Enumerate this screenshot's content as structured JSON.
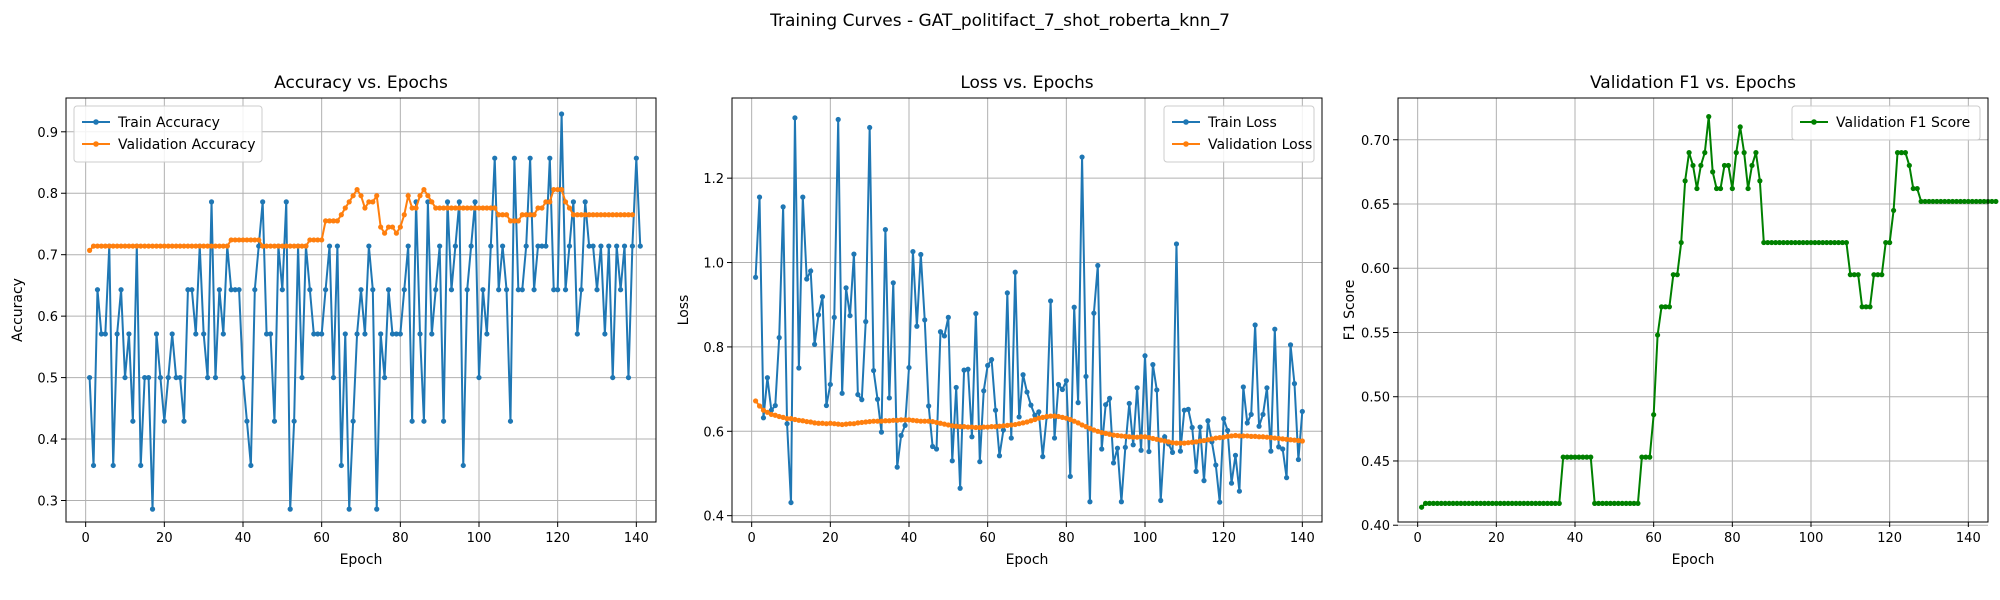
{
  "figure": {
    "suptitle": "Training Curves - GAT_politifact_7_shot_roberta_knn_7"
  },
  "colors": {
    "train": "#1f77b4",
    "validation": "#ff7f0e",
    "f1": "#008000"
  },
  "chart_data": [
    {
      "type": "line",
      "title": "Accuracy vs. Epochs",
      "xlabel": "Epoch",
      "ylabel": "Accuracy",
      "xlim": [
        -5,
        145
      ],
      "ylim": [
        0.265,
        0.955
      ],
      "xticks": [
        0,
        20,
        40,
        60,
        80,
        100,
        120,
        140
      ],
      "yticks": [
        0.3,
        0.4,
        0.5,
        0.6,
        0.7,
        0.8,
        0.9
      ],
      "ytick_labels": [
        "0.3",
        "0.4",
        "0.5",
        "0.6",
        "0.7",
        "0.8",
        "0.9"
      ],
      "grid": true,
      "legend_position": "top-left",
      "series": [
        {
          "name": "Train Accuracy",
          "color": "#1f77b4",
          "values": [
            0.5,
            0.357,
            0.643,
            0.571,
            0.571,
            0.714,
            0.357,
            0.571,
            0.643,
            0.5,
            0.571,
            0.429,
            0.714,
            0.357,
            0.5,
            0.5,
            0.286,
            0.571,
            0.5,
            0.429,
            0.5,
            0.571,
            0.5,
            0.5,
            0.429,
            0.643,
            0.643,
            0.571,
            0.714,
            0.571,
            0.5,
            0.786,
            0.5,
            0.643,
            0.571,
            0.714,
            0.643,
            0.643,
            0.643,
            0.5,
            0.429,
            0.357,
            0.643,
            0.714,
            0.786,
            0.571,
            0.571,
            0.429,
            0.714,
            0.643,
            0.786,
            0.286,
            0.429,
            0.714,
            0.5,
            0.714,
            0.643,
            0.571,
            0.571,
            0.571,
            0.643,
            0.714,
            0.5,
            0.714,
            0.357,
            0.571,
            0.286,
            0.429,
            0.571,
            0.643,
            0.571,
            0.714,
            0.643,
            0.286,
            0.571,
            0.5,
            0.643,
            0.571,
            0.571,
            0.571,
            0.643,
            0.714,
            0.429,
            0.786,
            0.571,
            0.429,
            0.786,
            0.571,
            0.643,
            0.714,
            0.429,
            0.786,
            0.643,
            0.714,
            0.786,
            0.357,
            0.643,
            0.714,
            0.786,
            0.5,
            0.643,
            0.571,
            0.714,
            0.857,
            0.643,
            0.714,
            0.643,
            0.429,
            0.857,
            0.643,
            0.643,
            0.714,
            0.857,
            0.643,
            0.714,
            0.714,
            0.714,
            0.857,
            0.643,
            0.643,
            0.929,
            0.643,
            0.714,
            0.786,
            0.571,
            0.643,
            0.786,
            0.714,
            0.714,
            0.643,
            0.714,
            0.571,
            0.714,
            0.5,
            0.714,
            0.643,
            0.714,
            0.5,
            0.714,
            0.857,
            0.714
          ]
        },
        {
          "name": "Validation Accuracy",
          "color": "#ff7f0e",
          "values": [
            0.707,
            0.714,
            0.714,
            0.714,
            0.714,
            0.714,
            0.714,
            0.714,
            0.714,
            0.714,
            0.714,
            0.714,
            0.714,
            0.714,
            0.714,
            0.714,
            0.714,
            0.714,
            0.714,
            0.714,
            0.714,
            0.714,
            0.714,
            0.714,
            0.714,
            0.714,
            0.714,
            0.714,
            0.714,
            0.714,
            0.714,
            0.714,
            0.714,
            0.714,
            0.714,
            0.714,
            0.724,
            0.724,
            0.724,
            0.724,
            0.724,
            0.724,
            0.724,
            0.724,
            0.714,
            0.714,
            0.714,
            0.714,
            0.714,
            0.714,
            0.714,
            0.714,
            0.714,
            0.714,
            0.714,
            0.714,
            0.724,
            0.724,
            0.724,
            0.724,
            0.755,
            0.755,
            0.755,
            0.755,
            0.765,
            0.776,
            0.786,
            0.796,
            0.806,
            0.796,
            0.776,
            0.786,
            0.786,
            0.796,
            0.745,
            0.735,
            0.745,
            0.745,
            0.735,
            0.745,
            0.765,
            0.796,
            0.776,
            0.776,
            0.796,
            0.806,
            0.796,
            0.786,
            0.776,
            0.776,
            0.776,
            0.776,
            0.776,
            0.776,
            0.776,
            0.776,
            0.776,
            0.776,
            0.776,
            0.776,
            0.776,
            0.776,
            0.776,
            0.776,
            0.765,
            0.765,
            0.765,
            0.755,
            0.755,
            0.755,
            0.765,
            0.765,
            0.765,
            0.765,
            0.776,
            0.776,
            0.786,
            0.786,
            0.806,
            0.806,
            0.806,
            0.786,
            0.776,
            0.765,
            0.765,
            0.765,
            0.765,
            0.765,
            0.765,
            0.765,
            0.765,
            0.765,
            0.765,
            0.765,
            0.765,
            0.765,
            0.765,
            0.765,
            0.765
          ]
        }
      ]
    },
    {
      "type": "line",
      "title": "Loss vs. Epochs",
      "xlabel": "Epoch",
      "ylabel": "Loss",
      "xlim": [
        -5,
        145
      ],
      "ylim": [
        0.385,
        1.39
      ],
      "xticks": [
        0,
        20,
        40,
        60,
        80,
        100,
        120,
        140
      ],
      "yticks": [
        0.4,
        0.6,
        0.8,
        1.0,
        1.2
      ],
      "ytick_labels": [
        "0.4",
        "0.6",
        "0.8",
        "1.0",
        "1.2"
      ],
      "grid": true,
      "legend_position": "top-right",
      "series": [
        {
          "name": "Train Loss",
          "color": "#1f77b4",
          "values": [
            0.965,
            1.155,
            0.632,
            0.727,
            0.65,
            0.661,
            0.822,
            1.132,
            0.618,
            0.431,
            1.343,
            0.75,
            1.155,
            0.961,
            0.98,
            0.806,
            0.876,
            0.919,
            0.661,
            0.711,
            0.87,
            1.339,
            0.69,
            0.94,
            0.874,
            1.02,
            0.687,
            0.675,
            0.86,
            1.32,
            0.744,
            0.676,
            0.598,
            1.078,
            0.679,
            0.952,
            0.515,
            0.59,
            0.614,
            0.751,
            1.026,
            0.849,
            1.019,
            0.864,
            0.66,
            0.564,
            0.558,
            0.836,
            0.826,
            0.87,
            0.53,
            0.704,
            0.465,
            0.745,
            0.747,
            0.587,
            0.879,
            0.528,
            0.696,
            0.756,
            0.77,
            0.65,
            0.542,
            0.603,
            0.928,
            0.584,
            0.977,
            0.634,
            0.734,
            0.693,
            0.662,
            0.638,
            0.646,
            0.54,
            0.634,
            0.909,
            0.584,
            0.711,
            0.699,
            0.72,
            0.493,
            0.894,
            0.668,
            1.25,
            0.73,
            0.433,
            0.88,
            0.993,
            0.558,
            0.663,
            0.678,
            0.525,
            0.56,
            0.433,
            0.562,
            0.666,
            0.568,
            0.703,
            0.555,
            0.779,
            0.552,
            0.758,
            0.698,
            0.436,
            0.587,
            0.57,
            0.55,
            1.044,
            0.553,
            0.65,
            0.652,
            0.609,
            0.505,
            0.61,
            0.483,
            0.625,
            0.575,
            0.52,
            0.432,
            0.63,
            0.602,
            0.477,
            0.543,
            0.458,
            0.705,
            0.62,
            0.64,
            0.852,
            0.612,
            0.64,
            0.703,
            0.553,
            0.842,
            0.563,
            0.558,
            0.49,
            0.805,
            0.713,
            0.533,
            0.647
          ]
        },
        {
          "name": "Validation Loss",
          "color": "#ff7f0e",
          "values": [
            0.672,
            0.66,
            0.65,
            0.645,
            0.64,
            0.638,
            0.635,
            0.633,
            0.63,
            0.63,
            0.628,
            0.626,
            0.625,
            0.623,
            0.622,
            0.62,
            0.619,
            0.619,
            0.618,
            0.619,
            0.618,
            0.617,
            0.616,
            0.617,
            0.618,
            0.618,
            0.62,
            0.621,
            0.622,
            0.623,
            0.624,
            0.624,
            0.624,
            0.625,
            0.625,
            0.626,
            0.626,
            0.627,
            0.627,
            0.627,
            0.626,
            0.625,
            0.624,
            0.624,
            0.624,
            0.623,
            0.621,
            0.619,
            0.617,
            0.615,
            0.613,
            0.612,
            0.611,
            0.611,
            0.61,
            0.61,
            0.609,
            0.609,
            0.61,
            0.61,
            0.611,
            0.611,
            0.612,
            0.613,
            0.614,
            0.615,
            0.616,
            0.618,
            0.62,
            0.622,
            0.625,
            0.628,
            0.631,
            0.633,
            0.635,
            0.636,
            0.636,
            0.635,
            0.633,
            0.631,
            0.628,
            0.624,
            0.62,
            0.615,
            0.611,
            0.607,
            0.603,
            0.6,
            0.597,
            0.595,
            0.593,
            0.591,
            0.59,
            0.589,
            0.588,
            0.587,
            0.586,
            0.586,
            0.587,
            0.587,
            0.585,
            0.583,
            0.581,
            0.579,
            0.577,
            0.575,
            0.573,
            0.572,
            0.572,
            0.572,
            0.573,
            0.574,
            0.575,
            0.577,
            0.578,
            0.58,
            0.582,
            0.584,
            0.585,
            0.586,
            0.588,
            0.589,
            0.59,
            0.589,
            0.589,
            0.589,
            0.588,
            0.588,
            0.587,
            0.587,
            0.586,
            0.585,
            0.584,
            0.583,
            0.582,
            0.581,
            0.58,
            0.579,
            0.578,
            0.577
          ]
        }
      ]
    },
    {
      "type": "line",
      "title": "Validation F1 vs. Epochs",
      "xlabel": "Epoch",
      "ylabel": "F1 Score",
      "xlim": [
        -5,
        145
      ],
      "ylim": [
        0.4025,
        0.7325
      ],
      "xticks": [
        0,
        20,
        40,
        60,
        80,
        100,
        120,
        140
      ],
      "yticks": [
        0.4,
        0.45,
        0.5,
        0.55,
        0.6,
        0.65,
        0.7
      ],
      "ytick_labels": [
        "0.40",
        "0.45",
        "0.50",
        "0.55",
        "0.60",
        "0.65",
        "0.70"
      ],
      "grid": true,
      "legend_position": "top-right",
      "series": [
        {
          "name": "Validation F1 Score",
          "color": "#008000",
          "values": [
            0.414,
            0.417,
            0.417,
            0.417,
            0.417,
            0.417,
            0.417,
            0.417,
            0.417,
            0.417,
            0.417,
            0.417,
            0.417,
            0.417,
            0.417,
            0.417,
            0.417,
            0.417,
            0.417,
            0.417,
            0.417,
            0.417,
            0.417,
            0.417,
            0.417,
            0.417,
            0.417,
            0.417,
            0.417,
            0.417,
            0.417,
            0.417,
            0.417,
            0.417,
            0.417,
            0.417,
            0.453,
            0.453,
            0.453,
            0.453,
            0.453,
            0.453,
            0.453,
            0.453,
            0.417,
            0.417,
            0.417,
            0.417,
            0.417,
            0.417,
            0.417,
            0.417,
            0.417,
            0.417,
            0.417,
            0.417,
            0.453,
            0.453,
            0.453,
            0.486,
            0.548,
            0.57,
            0.57,
            0.57,
            0.595,
            0.595,
            0.62,
            0.668,
            0.69,
            0.68,
            0.662,
            0.68,
            0.69,
            0.718,
            0.675,
            0.662,
            0.662,
            0.68,
            0.68,
            0.662,
            0.69,
            0.71,
            0.69,
            0.662,
            0.68,
            0.69,
            0.668,
            0.62,
            0.62,
            0.62,
            0.62,
            0.62,
            0.62,
            0.62,
            0.62,
            0.62,
            0.62,
            0.62,
            0.62,
            0.62,
            0.62,
            0.62,
            0.62,
            0.62,
            0.62,
            0.62,
            0.62,
            0.62,
            0.62,
            0.595,
            0.595,
            0.595,
            0.57,
            0.57,
            0.57,
            0.595,
            0.595,
            0.595,
            0.62,
            0.62,
            0.645,
            0.69,
            0.69,
            0.69,
            0.68,
            0.662,
            0.662,
            0.652,
            0.652,
            0.652,
            0.652,
            0.652,
            0.652,
            0.652,
            0.652,
            0.652,
            0.652,
            0.652,
            0.652,
            0.652,
            0.652,
            0.652,
            0.652,
            0.652,
            0.652,
            0.652,
            0.652
          ]
        }
      ]
    }
  ]
}
